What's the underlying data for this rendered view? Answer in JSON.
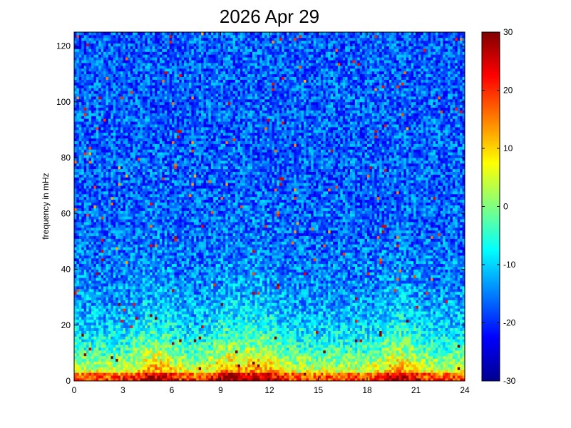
{
  "chart_data": {
    "type": "heatmap",
    "title": "2026 Apr 29",
    "xlabel": "",
    "ylabel": "frequency in mHz",
    "xlim": [
      0,
      24
    ],
    "ylim": [
      0,
      125
    ],
    "x_ticks": [
      0,
      3,
      6,
      9,
      12,
      15,
      18,
      21,
      24
    ],
    "x_tick_labels": [
      "0",
      "3",
      "6",
      "9",
      "12",
      "15",
      "18",
      "21",
      "24"
    ],
    "y_ticks": [
      0,
      20,
      40,
      60,
      80,
      100,
      120
    ],
    "y_tick_labels": [
      "0",
      "20",
      "40",
      "60",
      "80",
      "100",
      "120"
    ],
    "colormap": "jet",
    "clim": [
      -30,
      30
    ],
    "colorbar_ticks": [
      30,
      20,
      10,
      0,
      -10,
      -20,
      -30
    ],
    "colorbar_tick_labels": [
      "30",
      "20",
      "10",
      "0",
      "-10",
      "-20",
      "-30"
    ],
    "grid": false,
    "power_profile": {
      "description_units": "approximate power level (colour scale units) versus frequency and hour",
      "background_high_freq_level": -17,
      "low_freq_band_level": 12,
      "bursts_hours": [
        5,
        9.5,
        11.5,
        20
      ]
    }
  }
}
